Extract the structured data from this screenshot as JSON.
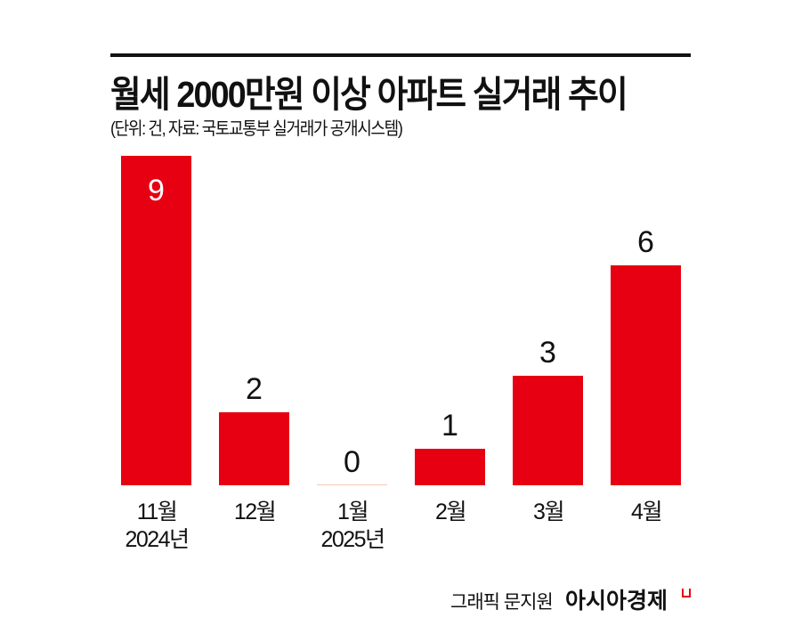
{
  "header": {
    "title": "월세 2000만원 이상 아파트 실거래 추이",
    "subtitle": "(단위: 건, 자료: 국토교통부 실거래가 공개시스템)"
  },
  "footer": {
    "credit": "그래픽 문지원",
    "brand": "아시아경제"
  },
  "colors": {
    "bar": "#e60012",
    "zero_bar": "#f5c7b8",
    "text": "#111111"
  },
  "bars": [
    {
      "label1": "11월",
      "label2": "2024년",
      "value": "9"
    },
    {
      "label1": "12월",
      "label2": "",
      "value": "2"
    },
    {
      "label1": "1월",
      "label2": "2025년",
      "value": "0"
    },
    {
      "label1": "2월",
      "label2": "",
      "value": "1"
    },
    {
      "label1": "3월",
      "label2": "",
      "value": "3"
    },
    {
      "label1": "4월",
      "label2": "",
      "value": "6"
    }
  ],
  "chart_data": {
    "type": "bar",
    "title": "월세 2000만원 이상 아파트 실거래 추이",
    "subtitle": "(단위: 건, 자료: 국토교통부 실거래가 공개시스템)",
    "categories": [
      "2024년 11월",
      "12월",
      "2025년 1월",
      "2월",
      "3월",
      "4월"
    ],
    "values": [
      9,
      2,
      0,
      1,
      3,
      6
    ],
    "xlabel": "",
    "ylabel": "건",
    "ylim": [
      0,
      9
    ],
    "grid": false,
    "legend": null,
    "annotations": [
      "그래픽 문지원",
      "아시아경제"
    ]
  }
}
